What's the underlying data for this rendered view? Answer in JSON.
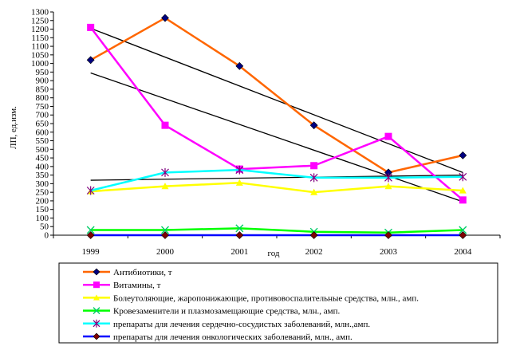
{
  "chart_data": {
    "type": "line",
    "xlabel": "год",
    "ylabel": "ЛП, ед.изм.",
    "ylim": [
      0,
      1300
    ],
    "y_tick_step": 50,
    "categories": [
      "1999",
      "2000",
      "2001",
      "2002",
      "2003",
      "2004"
    ],
    "grid": false,
    "legend_position": "bottom",
    "series": [
      {
        "name": "Антибиотики, т",
        "color": "#ff6600",
        "marker": "diamond",
        "marker_color": "#000080",
        "values": [
          1020,
          1265,
          985,
          640,
          365,
          465
        ]
      },
      {
        "name": "Витамины, т",
        "color": "#ff00ff",
        "marker": "square",
        "marker_color": "#ff00ff",
        "values": [
          1210,
          640,
          385,
          405,
          575,
          205
        ]
      },
      {
        "name": "Болеутоляющие, жаропонижающие, противовоспалительные средства, млн., амп.",
        "color": "#ffff00",
        "marker": "triangle",
        "marker_color": "#ffff00",
        "values": [
          255,
          285,
          305,
          250,
          285,
          260
        ]
      },
      {
        "name": "Кровезаменители и плазмозамещающие средства, млн., амп.",
        "color": "#00ff00",
        "marker": "x",
        "marker_color": "#00cc66",
        "values": [
          30,
          30,
          40,
          20,
          15,
          30
        ]
      },
      {
        "name": "препараты для лечения сердечно-сосудистых заболеваний, млн.,амп.",
        "color": "#00ffff",
        "marker": "star",
        "marker_color": "#800080",
        "values": [
          260,
          365,
          380,
          335,
          335,
          340
        ]
      },
      {
        "name": "препараты для лечения онкологических заболеваний, млн., амп.",
        "color": "#0000ff",
        "marker": "diamond",
        "marker_color": "#800000",
        "values": [
          0,
          0,
          0,
          0,
          0,
          0
        ]
      }
    ],
    "trendlines": [
      {
        "color": "#000000",
        "values": [
          1205,
          1037,
          869,
          701,
          533,
          365
        ]
      },
      {
        "color": "#000000",
        "values": [
          945,
          795,
          645,
          495,
          345,
          195
        ]
      },
      {
        "color": "#000000",
        "values": [
          320,
          326,
          332,
          338,
          344,
          350
        ]
      }
    ]
  }
}
